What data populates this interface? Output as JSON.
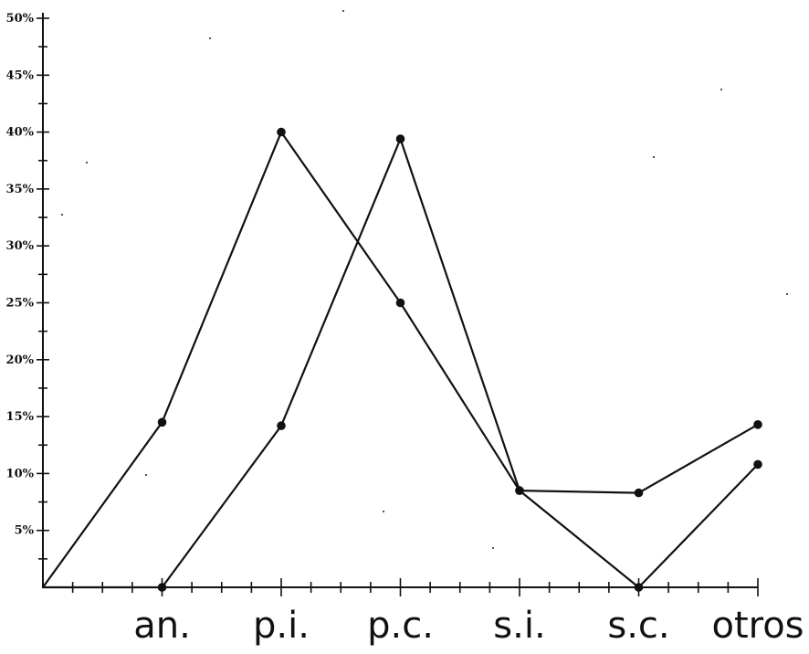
{
  "chart_data": {
    "type": "line",
    "categories": [
      "",
      "an.",
      "p.i.",
      "p.c.",
      "s.i.",
      "s.c.",
      "otros"
    ],
    "y_tick_labels": [
      "5%",
      "10%",
      "15%",
      "20%",
      "25%",
      "30%",
      "35%",
      "40%",
      "45%",
      "50%"
    ],
    "ylim": [
      0,
      50
    ],
    "grid": false,
    "title": "",
    "xlabel": "",
    "ylabel": "",
    "series": [
      {
        "values": [
          0,
          14.5,
          40,
          25,
          8.5,
          8.3,
          14.3
        ]
      },
      {
        "values": [
          0,
          0,
          14.2,
          39.4,
          8.5,
          0,
          10.8
        ]
      }
    ],
    "line_color": "#111111"
  }
}
